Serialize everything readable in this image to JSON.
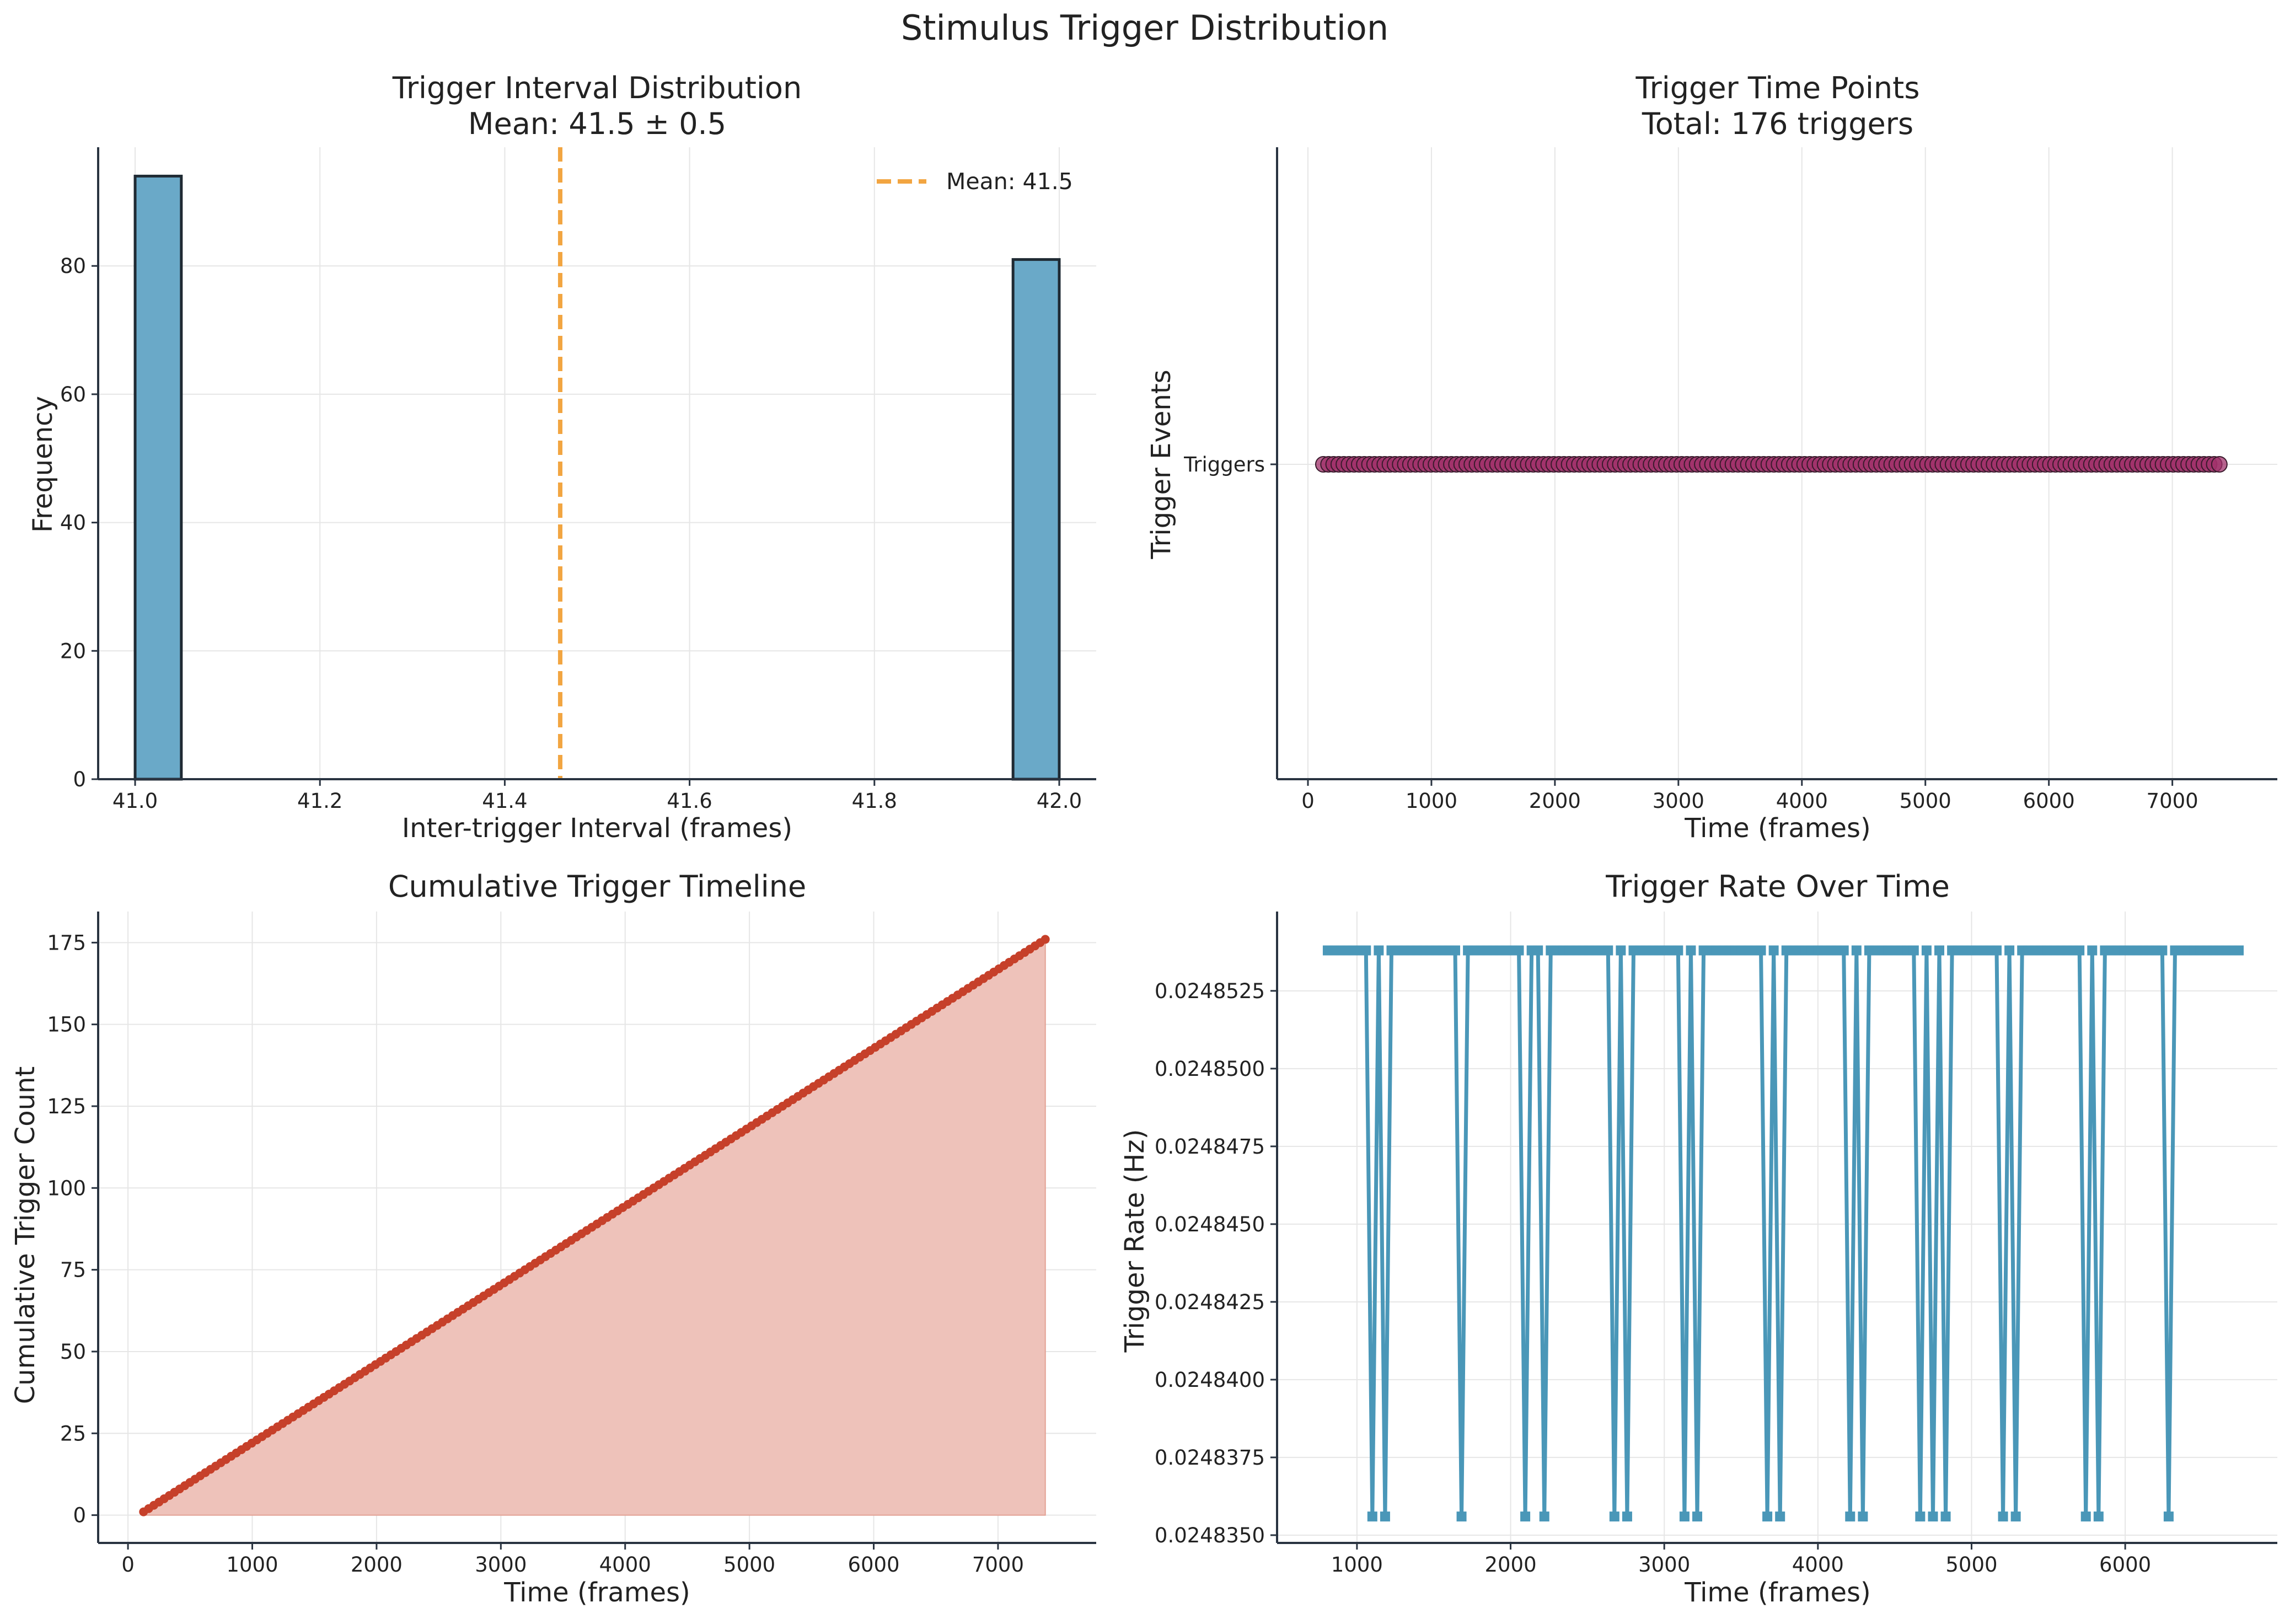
{
  "figure": {
    "title": "Stimulus Trigger Distribution"
  },
  "colors": {
    "hist_bar": "#6aa9c8",
    "hist_edge": "#1f2a33",
    "mean_line": "#f2a541",
    "trigger_points": "#a0306a",
    "cumulative_line": "#c6402a",
    "cumulative_fill": "#eec2ba",
    "rate_line": "#4a97b8"
  },
  "chart_data": [
    {
      "type": "bar",
      "title": "Trigger Interval Distribution",
      "subtitle": "Mean: 41.5 ± 0.5",
      "xlabel": "Inter-trigger Interval (frames)",
      "ylabel": "Frequency",
      "xlim": [
        40.96,
        42.04
      ],
      "ylim": [
        0,
        98.5
      ],
      "xticks": [
        41.0,
        41.2,
        41.4,
        41.6,
        41.8,
        42.0
      ],
      "xtick_labels": [
        "41.0",
        "41.2",
        "41.4",
        "41.6",
        "41.8",
        "42.0"
      ],
      "yticks": [
        0,
        20,
        40,
        60,
        80
      ],
      "ytick_labels": [
        "0",
        "20",
        "40",
        "60",
        "80"
      ],
      "bins": [
        {
          "x0": 41.0,
          "x1": 41.05,
          "count": 94
        },
        {
          "x0": 41.95,
          "x1": 42.0,
          "count": 81
        }
      ],
      "mean_value": 41.46,
      "legend": {
        "label": "Mean: 41.5",
        "position": "top-right"
      },
      "grid": true
    },
    {
      "type": "scatter",
      "title": "Trigger Time Points",
      "subtitle": "Total: 176 triggers",
      "xlabel": "Time (frames)",
      "ylabel": "Trigger Events",
      "xlim": [
        -250,
        7850
      ],
      "xticks": [
        0,
        1000,
        2000,
        3000,
        4000,
        5000,
        6000,
        7000
      ],
      "xtick_labels": [
        "0",
        "1000",
        "2000",
        "3000",
        "4000",
        "5000",
        "6000",
        "7000"
      ],
      "ytick_labels": [
        "Triggers"
      ],
      "count": 176,
      "first_time": 125,
      "mean_interval": 41.46,
      "grid": true
    },
    {
      "type": "area",
      "title": "Cumulative Trigger Timeline",
      "xlabel": "Time (frames)",
      "ylabel": "Cumulative Trigger Count",
      "xlim": [
        -240,
        7790
      ],
      "ylim": [
        -8.5,
        184.5
      ],
      "xticks": [
        0,
        1000,
        2000,
        3000,
        4000,
        5000,
        6000,
        7000
      ],
      "xtick_labels": [
        "0",
        "1000",
        "2000",
        "3000",
        "4000",
        "5000",
        "6000",
        "7000"
      ],
      "yticks": [
        0,
        25,
        50,
        75,
        100,
        125,
        150,
        175
      ],
      "ytick_labels": [
        "0",
        "25",
        "50",
        "75",
        "100",
        "125",
        "150",
        "175"
      ],
      "count": 176,
      "first_time": 125,
      "mean_interval": 41.46,
      "grid": true
    },
    {
      "type": "line",
      "title": "Trigger Rate Over Time",
      "xlabel": "Time (frames)",
      "ylabel": "Trigger Rate (Hz)",
      "xlim": [
        480,
        6990
      ],
      "ylim": [
        0.02483475,
        0.02485505
      ],
      "xticks": [
        1000,
        2000,
        3000,
        4000,
        5000,
        6000
      ],
      "xtick_labels": [
        "1000",
        "2000",
        "3000",
        "4000",
        "5000",
        "6000"
      ],
      "yticks": [
        0.024835,
        0.0248375,
        0.02484,
        0.0248425,
        0.024845,
        0.0248475,
        0.02485,
        0.0248525
      ],
      "ytick_labels": [
        "0.0248350",
        "0.0248375",
        "0.0248400",
        "0.0248425",
        "0.0248450",
        "0.0248475",
        "0.0248500",
        "0.0248525"
      ],
      "x_start": 810,
      "x_step": 41.46,
      "n_points": 144,
      "high_value": 0.0248538,
      "low_value": 0.0248356,
      "low_times": [
        1115,
        1200,
        1660,
        2115,
        2200,
        2660,
        2740,
        3115,
        3200,
        3655,
        3740,
        4195,
        4280,
        4655,
        4740,
        4820,
        5195,
        5280,
        5735,
        5820,
        6275
      ],
      "grid": true
    }
  ]
}
